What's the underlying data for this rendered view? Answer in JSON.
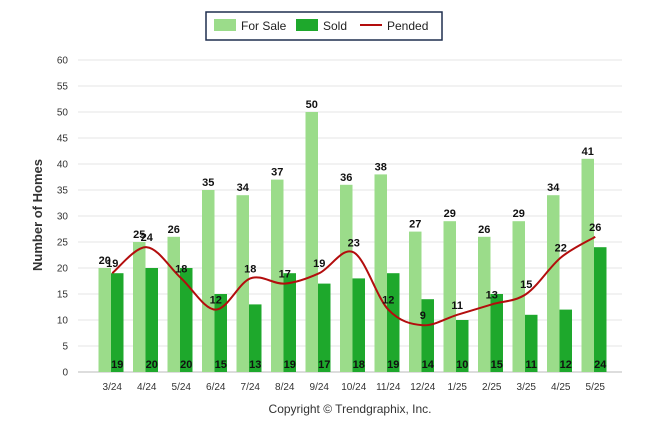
{
  "chart_data": {
    "type": "bar",
    "categories": [
      "3/24",
      "4/24",
      "5/24",
      "6/24",
      "7/24",
      "8/24",
      "9/24",
      "10/24",
      "11/24",
      "12/24",
      "1/25",
      "2/25",
      "3/25",
      "4/25",
      "5/25"
    ],
    "series": [
      {
        "name": "For Sale",
        "kind": "bar",
        "color": "#9bdc8a",
        "values": [
          20,
          25,
          26,
          35,
          34,
          37,
          50,
          36,
          38,
          27,
          29,
          26,
          29,
          34,
          41
        ]
      },
      {
        "name": "Sold",
        "kind": "bar",
        "color": "#1ea82c",
        "values": [
          19,
          20,
          20,
          15,
          13,
          19,
          17,
          18,
          19,
          14,
          10,
          15,
          11,
          12,
          24
        ]
      },
      {
        "name": "Pended",
        "kind": "line",
        "color": "#b30d0d",
        "values": [
          19,
          24,
          18,
          12,
          18,
          17,
          19,
          23,
          12,
          9,
          11,
          13,
          15,
          22,
          26
        ]
      }
    ],
    "title": "",
    "xlabel": "",
    "ylabel": "Number of Homes",
    "ylim": [
      0,
      60
    ],
    "yticks": [
      0,
      5,
      10,
      15,
      20,
      25,
      30,
      35,
      40,
      45,
      50,
      55,
      60
    ],
    "grid": true,
    "legend_position": "top-center",
    "footer": "Copyright © Trendgraphix, Inc."
  }
}
